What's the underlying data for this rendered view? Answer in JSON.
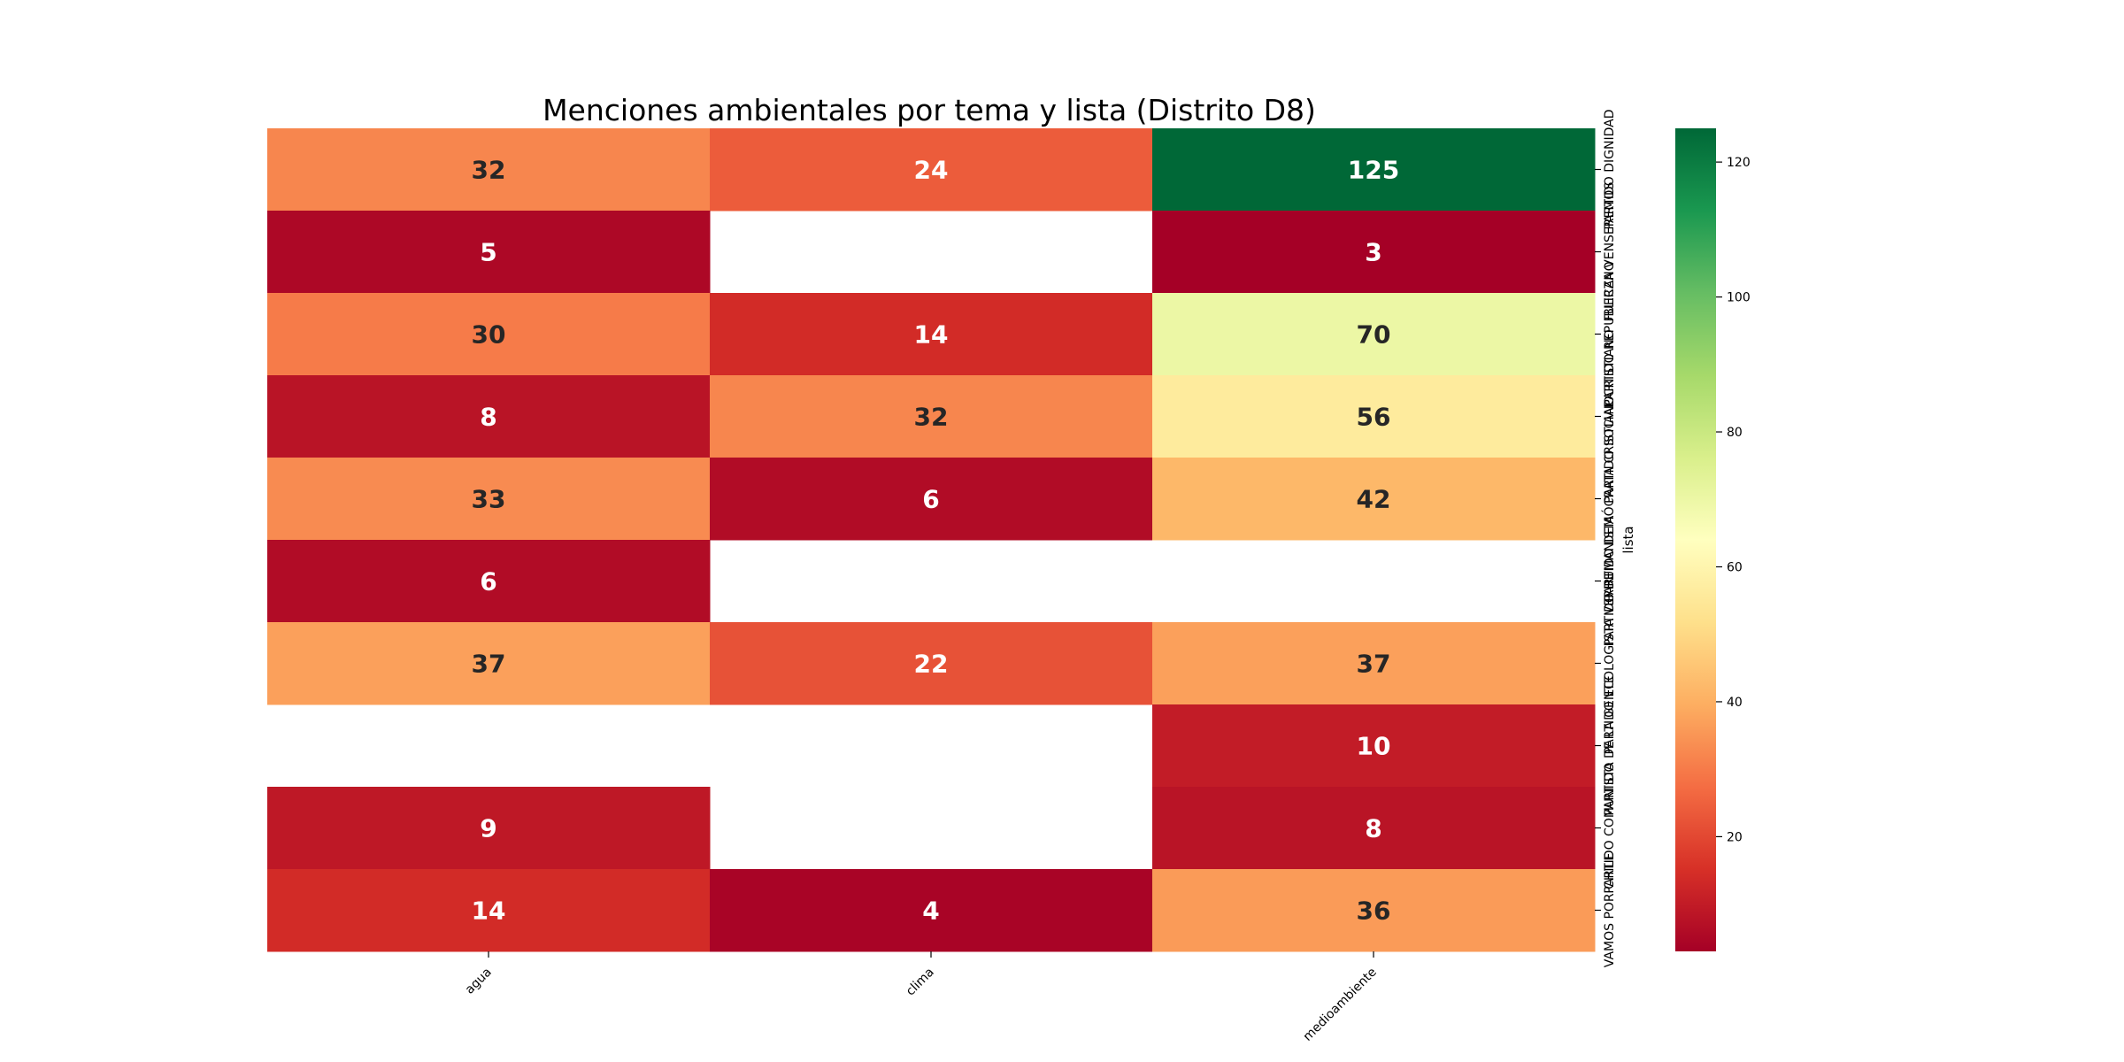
{
  "chart_data": {
    "type": "heatmap",
    "title": "Menciones ambientales por tema y lista (Distrito D8)",
    "xlabel": "",
    "ylabel": "lista",
    "columns": [
      "agua",
      "clima",
      "medioambiente"
    ],
    "rows": [
      "PARTIDO DIGNIDAD",
      "FUERZA VENSEREMOS",
      "PARTIDO REPUBLICANO",
      "PARTIDO SOCIAL CRISTIANO",
      "PARTIDO DEMÓCRATA CRISTIANO",
      "PARTIDO HUMANISTA",
      "PARTIDO ECOLOGISTA VERDE",
      "PARTIDO DE LA GENTE",
      "PARTIDO COMUNISTA",
      "VAMOS POR CHILE"
    ],
    "values": [
      [
        32,
        24,
        125
      ],
      [
        5,
        null,
        3
      ],
      [
        30,
        14,
        70
      ],
      [
        8,
        32,
        56
      ],
      [
        33,
        6,
        42
      ],
      [
        6,
        null,
        null
      ],
      [
        37,
        22,
        37
      ],
      [
        null,
        null,
        10
      ],
      [
        9,
        null,
        8
      ],
      [
        14,
        4,
        36
      ]
    ],
    "colormap": "RdYlGn",
    "vmin": 3,
    "vmax": 125,
    "colorbar_ticks": [
      "20",
      "40",
      "60",
      "80",
      "100",
      "120"
    ],
    "colorbar_tick_values": [
      20,
      40,
      60,
      80,
      100,
      120
    ],
    "annotations": true,
    "missing_color": "#ffffff"
  }
}
